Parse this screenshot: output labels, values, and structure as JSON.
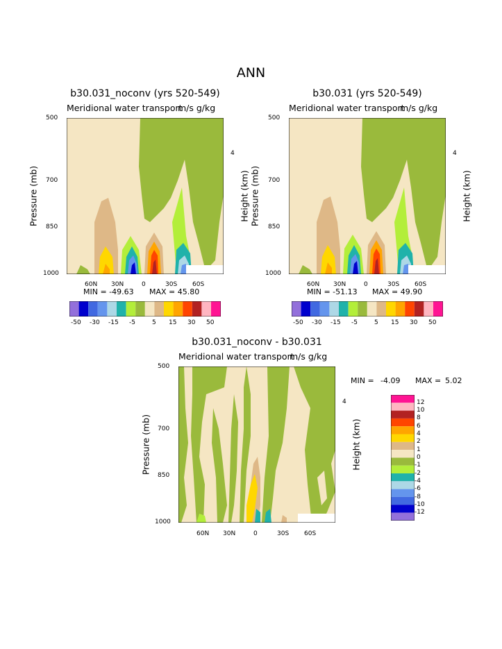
{
  "figure_title": "ANN",
  "colors": {
    "palette13": [
      "#9370db",
      "#0000cd",
      "#4169e1",
      "#6495ed",
      "#add8e6",
      "#20b2aa",
      "#b3ee3a",
      "#9aba3c",
      "#f5e6c3",
      "#deb887",
      "#ffd700",
      "#ffa500",
      "#ff4500",
      "#b22222",
      "#ffb6c1",
      "#ff1493"
    ],
    "level_colors": {
      "neg50": "#9370db",
      "neg40": "#0000cd",
      "neg30": "#4169e1",
      "neg20": "#6495ed",
      "neg15": "#add8e6",
      "neg10": "#20b2aa",
      "neg5": "#b3ee3a",
      "zero": "#9aba3c",
      "pos0": "#f5e6c3",
      "pos5": "#deb887",
      "pos10": "#ffd700",
      "pos15": "#ffa500",
      "pos20": "#ff4500",
      "pos30": "#b22222",
      "pos40": "#ffb6c1",
      "pos50": "#ff1493"
    }
  },
  "chart_data": [
    {
      "type": "heatmap",
      "title": "b30.031_noconv (yrs 520-549)",
      "subtitle": "Meridional water transport",
      "units": "m/s g/kg",
      "ylabel": "Pressure (mb)",
      "ylabel_right": "Height (km)",
      "y_ticks": [
        "500",
        "700",
        "850",
        "1000"
      ],
      "y_ticks_right": [
        "4"
      ],
      "x_ticks": [
        "60N",
        "30N",
        "0",
        "30S",
        "60S"
      ],
      "ylim": [
        1000,
        500
      ],
      "min_label": "MIN = -49.63",
      "max_label": "MAX = 45.80",
      "colorbar_labels": [
        "-50",
        "-30",
        "-15",
        "-5",
        "5",
        "15",
        "30",
        "50"
      ]
    },
    {
      "type": "heatmap",
      "title": "b30.031 (yrs 520-549)",
      "subtitle": "Meridional water transport",
      "units": "m/s g/kg",
      "ylabel": "Pressure (mb)",
      "ylabel_right": "Height (km)",
      "y_ticks": [
        "500",
        "700",
        "850",
        "1000"
      ],
      "y_ticks_right": [
        "4"
      ],
      "x_ticks": [
        "60N",
        "30N",
        "0",
        "30S",
        "60S"
      ],
      "ylim": [
        1000,
        500
      ],
      "min_label": "MIN = -51.13",
      "max_label": "MAX = 49.90",
      "colorbar_labels": [
        "-50",
        "-30",
        "-15",
        "-5",
        "5",
        "15",
        "30",
        "50"
      ]
    },
    {
      "type": "heatmap",
      "title": "b30.031_noconv - b30.031",
      "subtitle": "Meridional water transport",
      "units": "m/s g/kg",
      "ylabel": "Pressure (mb)",
      "ylabel_right": "Height (km)",
      "y_ticks": [
        "500",
        "700",
        "850",
        "1000"
      ],
      "y_ticks_right": [
        "4"
      ],
      "x_ticks": [
        "60N",
        "30N",
        "0",
        "30S",
        "60S"
      ],
      "ylim": [
        1000,
        500
      ],
      "min_label": "MIN =",
      "min_value": "-4.09",
      "max_label": "MAX =",
      "max_value": "5.02",
      "colorbar_labels": [
        "12",
        "10",
        "8",
        "6",
        "4",
        "2",
        "1",
        "0",
        "-1",
        "-2",
        "-4",
        "-6",
        "-8",
        "-10",
        "-12"
      ]
    }
  ]
}
